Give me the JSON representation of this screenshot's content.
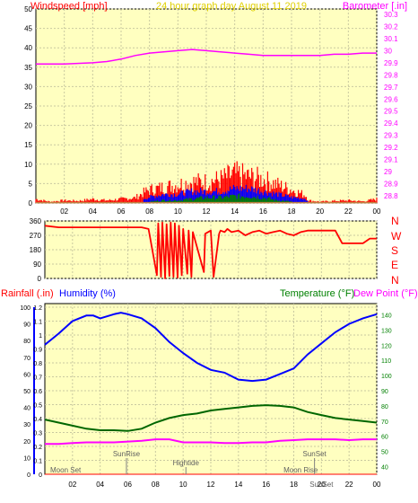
{
  "panel_wind": {
    "left_title": "Windspeed [mph]",
    "center_title": "24 hour graph day   August 11 2019",
    "right_title": "Barometer [.in]"
  },
  "panel_dir": {
    "compass": [
      "N",
      "W",
      "S",
      "E",
      "N"
    ]
  },
  "panel_temp": {
    "rain_title": "Rainfall (.in)",
    "humidity_title": "Humidity (%)",
    "temp_title": "Temperature (°F)",
    "dew_title": "Dew Point (°F)"
  },
  "colors": {
    "background": "#ffffc0",
    "grid": "#c9c9a0",
    "windspeed": "#ff0000",
    "wind_avg": "#0000ff",
    "wind_green": "#008000",
    "barometer": "#ff00ff",
    "direction": "#ff0000",
    "humidity": "#0000ff",
    "temperature": "#006600",
    "dewpoint": "#ff00ff",
    "rainfall_axis": "#0000ff",
    "humidity_axis": "#000000",
    "temp_axis": "#008000"
  },
  "chart_data": [
    {
      "type": "line",
      "name": "windspeed_barometer",
      "x_ticks": [
        "02",
        "04",
        "06",
        "08",
        "10",
        "12",
        "14",
        "16",
        "18",
        "20",
        "22",
        "00"
      ],
      "xlim": [
        0,
        24
      ],
      "y_left": {
        "ticks": [
          "0",
          "5",
          "10",
          "15",
          "20",
          "25",
          "30",
          "35",
          "40",
          "45",
          "50"
        ],
        "ylim": [
          0,
          50
        ]
      },
      "y_right": {
        "ticks": [
          "28.8",
          "28.9",
          "29",
          "29.1",
          "29.2",
          "29.3",
          "29.4",
          "29.5",
          "29.6",
          "29.7",
          "29.8",
          "29.9",
          "30",
          "30.1",
          "30.2",
          "30.3"
        ],
        "ylim": [
          28.8,
          30.3
        ]
      },
      "barometer": {
        "x": [
          0,
          2,
          4,
          5,
          6,
          7,
          8,
          9,
          10,
          11,
          12,
          13,
          14,
          15,
          16,
          17,
          18,
          19,
          20,
          21,
          22,
          23,
          24
        ],
        "y": [
          29.89,
          29.89,
          29.9,
          29.91,
          29.93,
          29.96,
          29.98,
          29.99,
          30,
          30.01,
          30,
          29.99,
          29.98,
          29.97,
          29.96,
          29.96,
          29.96,
          29.96,
          29.96,
          29.97,
          29.97,
          29.98,
          29.98
        ]
      },
      "wind_gust_band": {
        "x": [
          0,
          1,
          2,
          3,
          4,
          5,
          6,
          7,
          7.6,
          8,
          9,
          10,
          11,
          12,
          13,
          14,
          15,
          16,
          17,
          18,
          19,
          19.2,
          20,
          21,
          22,
          23,
          24
        ],
        "max": [
          1.5,
          0.5,
          1,
          0.8,
          1.5,
          1,
          1.5,
          2,
          4,
          5,
          6,
          7,
          8,
          8,
          9,
          11,
          10,
          9,
          7,
          5,
          3,
          1,
          0.5,
          0.8,
          1,
          0.6,
          1.5
        ]
      },
      "wind_avg_band": {
        "x": [
          7.6,
          8,
          9,
          10,
          11,
          12,
          13,
          14,
          15,
          16,
          17,
          18,
          19,
          19.2
        ],
        "max": [
          1.5,
          2,
          3,
          3,
          4,
          4,
          4,
          5,
          5,
          4,
          3,
          2,
          1.5,
          0
        ]
      },
      "wind_green_band": {
        "x": [
          8,
          9,
          10,
          11,
          12,
          13,
          14,
          15,
          16,
          17,
          18
        ],
        "max": [
          0.5,
          1,
          1,
          1.5,
          2,
          2,
          2.5,
          2.5,
          2,
          1,
          0.5
        ]
      }
    },
    {
      "type": "line",
      "name": "wind_direction",
      "x_ticks": [
        "02",
        "04",
        "06",
        "08",
        "10",
        "12",
        "14",
        "16",
        "18",
        "20",
        "22",
        "00"
      ],
      "xlim": [
        0,
        24
      ],
      "y_ticks": [
        "0",
        "90",
        "180",
        "270",
        "360"
      ],
      "ylim": [
        0,
        360
      ],
      "direction": {
        "x": [
          0,
          1,
          2,
          3,
          4,
          5,
          6,
          7,
          7.5,
          8.1,
          8.2,
          8.4,
          8.5,
          8.7,
          8.8,
          9,
          9.1,
          9.3,
          9.4,
          9.6,
          9.7,
          9.9,
          10,
          10.3,
          10.4,
          10.6,
          10.7,
          11.5,
          11.6,
          12,
          12.2,
          12.6,
          12.7,
          13,
          13.2,
          13.5,
          14,
          14.5,
          15,
          15.5,
          16,
          16.5,
          17,
          17.5,
          18,
          18.5,
          19,
          19.3,
          19.5,
          20,
          21,
          21.5,
          22,
          23,
          23.5,
          24
        ],
        "y": [
          330,
          320,
          320,
          320,
          320,
          320,
          320,
          320,
          310,
          20,
          345,
          10,
          350,
          0,
          340,
          15,
          350,
          10,
          345,
          5,
          330,
          20,
          310,
          30,
          300,
          10,
          290,
          40,
          280,
          300,
          10,
          280,
          300,
          290,
          310,
          290,
          300,
          270,
          290,
          300,
          280,
          290,
          300,
          280,
          270,
          290,
          300,
          300,
          300,
          300,
          300,
          220,
          220,
          220,
          250,
          250
        ]
      }
    },
    {
      "type": "line",
      "name": "temperature_humidity",
      "x_ticks": [
        "02",
        "04",
        "06",
        "08",
        "10",
        "12",
        "14",
        "16",
        "18",
        "20",
        "22",
        "00"
      ],
      "xlim": [
        0,
        24
      ],
      "y_rain": {
        "ticks": [
          "0",
          "10",
          "20",
          "30",
          "40",
          "50",
          "60",
          "70",
          "80",
          "90",
          "100"
        ],
        "ylim": [
          0,
          100
        ]
      },
      "y_humidity": {
        "ticks": [
          "0",
          "0.1",
          "0.2",
          "0.3",
          "0.4",
          "0.5",
          "0.6",
          "0.7",
          "0.8",
          "0.9",
          "1",
          "1.1",
          "1.2"
        ],
        "ylim": [
          0,
          1.2
        ]
      },
      "y_temp": {
        "ticks": [
          "40",
          "50",
          "60",
          "70",
          "80",
          "90",
          "100",
          "110",
          "120",
          "130",
          "140"
        ],
        "ylim": [
          35,
          145
        ]
      },
      "humidity": {
        "x": [
          0,
          0.5,
          1,
          2,
          3,
          3.5,
          4,
          5,
          5.5,
          6,
          7,
          8,
          9,
          10,
          11,
          12,
          13,
          14,
          15,
          16,
          17,
          18,
          19,
          20,
          21,
          22,
          23,
          24
        ],
        "y": [
          0.93,
          0.97,
          1.01,
          1.1,
          1.14,
          1.14,
          1.12,
          1.15,
          1.16,
          1.15,
          1.12,
          1.05,
          0.95,
          0.87,
          0.8,
          0.75,
          0.73,
          0.68,
          0.67,
          0.68,
          0.72,
          0.76,
          0.86,
          0.94,
          1.02,
          1.08,
          1.12,
          1.15
        ]
      },
      "temperature": {
        "x": [
          0,
          1,
          2,
          3,
          4,
          5,
          6,
          7,
          8,
          9,
          10,
          11,
          12,
          13,
          14,
          15,
          16,
          17,
          18,
          19,
          20,
          21,
          22,
          23,
          24
        ],
        "y": [
          71,
          69,
          67,
          65,
          64,
          64,
          63.5,
          65,
          69,
          72,
          74,
          75,
          77,
          78,
          79,
          80,
          80.5,
          80,
          79,
          76,
          74,
          72,
          71,
          70,
          69
        ]
      },
      "dew_point": {
        "x": [
          0,
          1,
          2,
          3,
          4,
          5,
          6,
          7,
          8,
          9,
          10,
          11,
          12,
          13,
          14,
          15,
          16,
          17,
          18,
          19,
          20,
          21,
          22,
          23,
          24
        ],
        "y": [
          55,
          55,
          55.5,
          56,
          56,
          56,
          56.5,
          57,
          58,
          58,
          56,
          56,
          56,
          55.5,
          55.5,
          56,
          56,
          57,
          57.5,
          58,
          58,
          58,
          57.5,
          58,
          58
        ]
      },
      "rainfall": {
        "x": [
          0,
          24
        ],
        "y": [
          0,
          0
        ]
      },
      "events": [
        {
          "label": "Moon Set",
          "x": 1.5,
          "row": "bottom"
        },
        {
          "label": "SunRise",
          "x": 5.9,
          "row": "top"
        },
        {
          "label": "Hightide",
          "x": 10.2,
          "row": "middle"
        },
        {
          "label": "SunSet",
          "x": 19.5,
          "row": "top"
        },
        {
          "label": "Moon Rise",
          "x": 18.5,
          "row": "bottom"
        },
        {
          "label": "SunSet",
          "x": 20,
          "row": "axis"
        }
      ]
    }
  ]
}
